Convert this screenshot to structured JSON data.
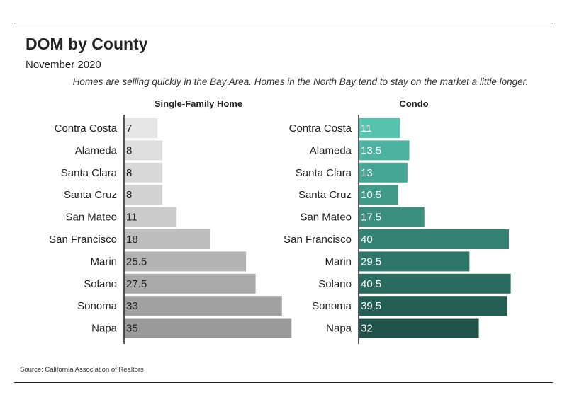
{
  "header": {
    "title": "DOM by County",
    "subtitle": "November 2020",
    "caption": "Homes are selling quickly in the Bay Area. Homes in the North Bay tend to stay on the market a little longer."
  },
  "footer": {
    "source": "Source:  California Association of Realtors"
  },
  "chart_data": [
    {
      "type": "bar",
      "orientation": "horizontal",
      "title": "Single-Family Home",
      "categories": [
        "Contra Costa",
        "Alameda",
        "Santa Clara",
        "Santa Cruz",
        "San Mateo",
        "San Francisco",
        "Marin",
        "Solano",
        "Sonoma",
        "Napa"
      ],
      "values": [
        7,
        8,
        8,
        8,
        11,
        18,
        25.5,
        27.5,
        33,
        35
      ],
      "value_labels": [
        "7",
        "8",
        "8",
        "8",
        "11",
        "18",
        "25.5",
        "27.5",
        "33",
        "35"
      ],
      "colors": [
        "#e6e6e6",
        "#dedede",
        "#d8d8d8",
        "#d3d3d3",
        "#cbcbcb",
        "#bebebe",
        "#b3b3b3",
        "#aaaaaa",
        "#a2a2a2",
        "#9a9a9a"
      ],
      "grid": false
    },
    {
      "type": "bar",
      "orientation": "horizontal",
      "title": "Condo",
      "categories": [
        "Contra Costa",
        "Alameda",
        "Santa Clara",
        "Santa Cruz",
        "San Mateo",
        "San Francisco",
        "Marin",
        "Solano",
        "Sonoma",
        "Napa"
      ],
      "values": [
        11,
        13.5,
        13,
        10.5,
        17.5,
        40,
        29.5,
        40.5,
        39.5,
        32
      ],
      "value_labels": [
        "11",
        "13.5",
        "13",
        "10.5",
        "17.5",
        "40",
        "29.5",
        "40.5",
        "39.5",
        "32"
      ],
      "colors": [
        "#55c2ad",
        "#4db3a0",
        "#45a693",
        "#3f9a88",
        "#398e7d",
        "#338273",
        "#2e7668",
        "#296b5e",
        "#245f54",
        "#1f534a"
      ],
      "grid": false
    }
  ]
}
